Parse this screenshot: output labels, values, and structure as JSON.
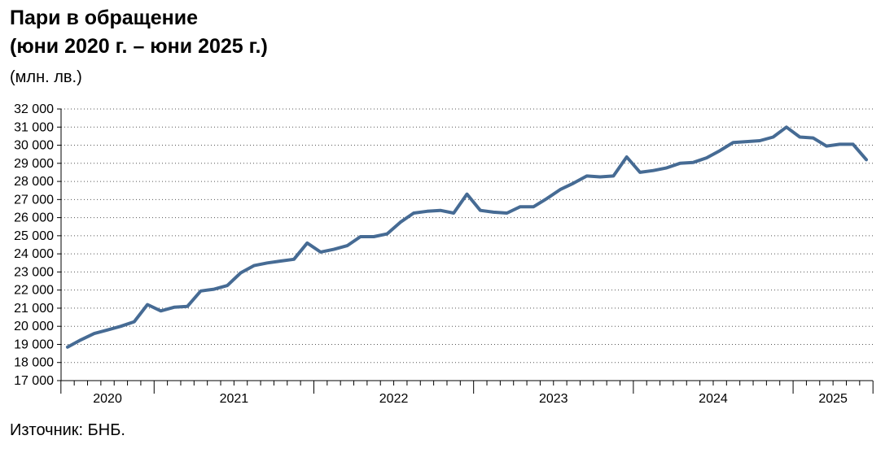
{
  "title": "Пари в обращение",
  "subtitle": "(юни 2020 г. – юни 2025 г.)",
  "unit": "(млн. лв.)",
  "source": "Източник: БНБ.",
  "chart_data": {
    "type": "line",
    "x_start": "2020-06",
    "x_end": "2025-06",
    "ylim": [
      17000,
      32000
    ],
    "ytick_step": 1000,
    "ytick_labels": [
      "17 000",
      "18 000",
      "19 000",
      "20 000",
      "21 000",
      "22 000",
      "23 000",
      "24 000",
      "25 000",
      "26 000",
      "27 000",
      "28 000",
      "29 000",
      "30 000",
      "31 000",
      "32 000"
    ],
    "year_labels": [
      "2020",
      "2021",
      "2022",
      "2023",
      "2024",
      "2025"
    ],
    "grid": "horizontal dotted",
    "line_color": "#466b94",
    "series": [
      {
        "values": [
          18850,
          19250,
          19600,
          19800,
          20000,
          20250,
          21200,
          20850,
          21050,
          21100,
          21950,
          22050,
          22250,
          22950,
          23350,
          23500,
          23600,
          23700,
          24600,
          24100,
          24250,
          24450,
          24950,
          24950,
          25100,
          25750,
          26250,
          26350,
          26400,
          26250,
          27300,
          26400,
          26300,
          26250,
          26600,
          26600,
          27050,
          27550,
          27900,
          28300,
          28250,
          28300,
          29350,
          28500,
          28600,
          28750,
          29000,
          29050,
          29300,
          29700,
          30150,
          30200,
          30250,
          30450,
          31000,
          30450,
          30400,
          29950,
          30050,
          30050,
          29200
        ]
      }
    ]
  }
}
